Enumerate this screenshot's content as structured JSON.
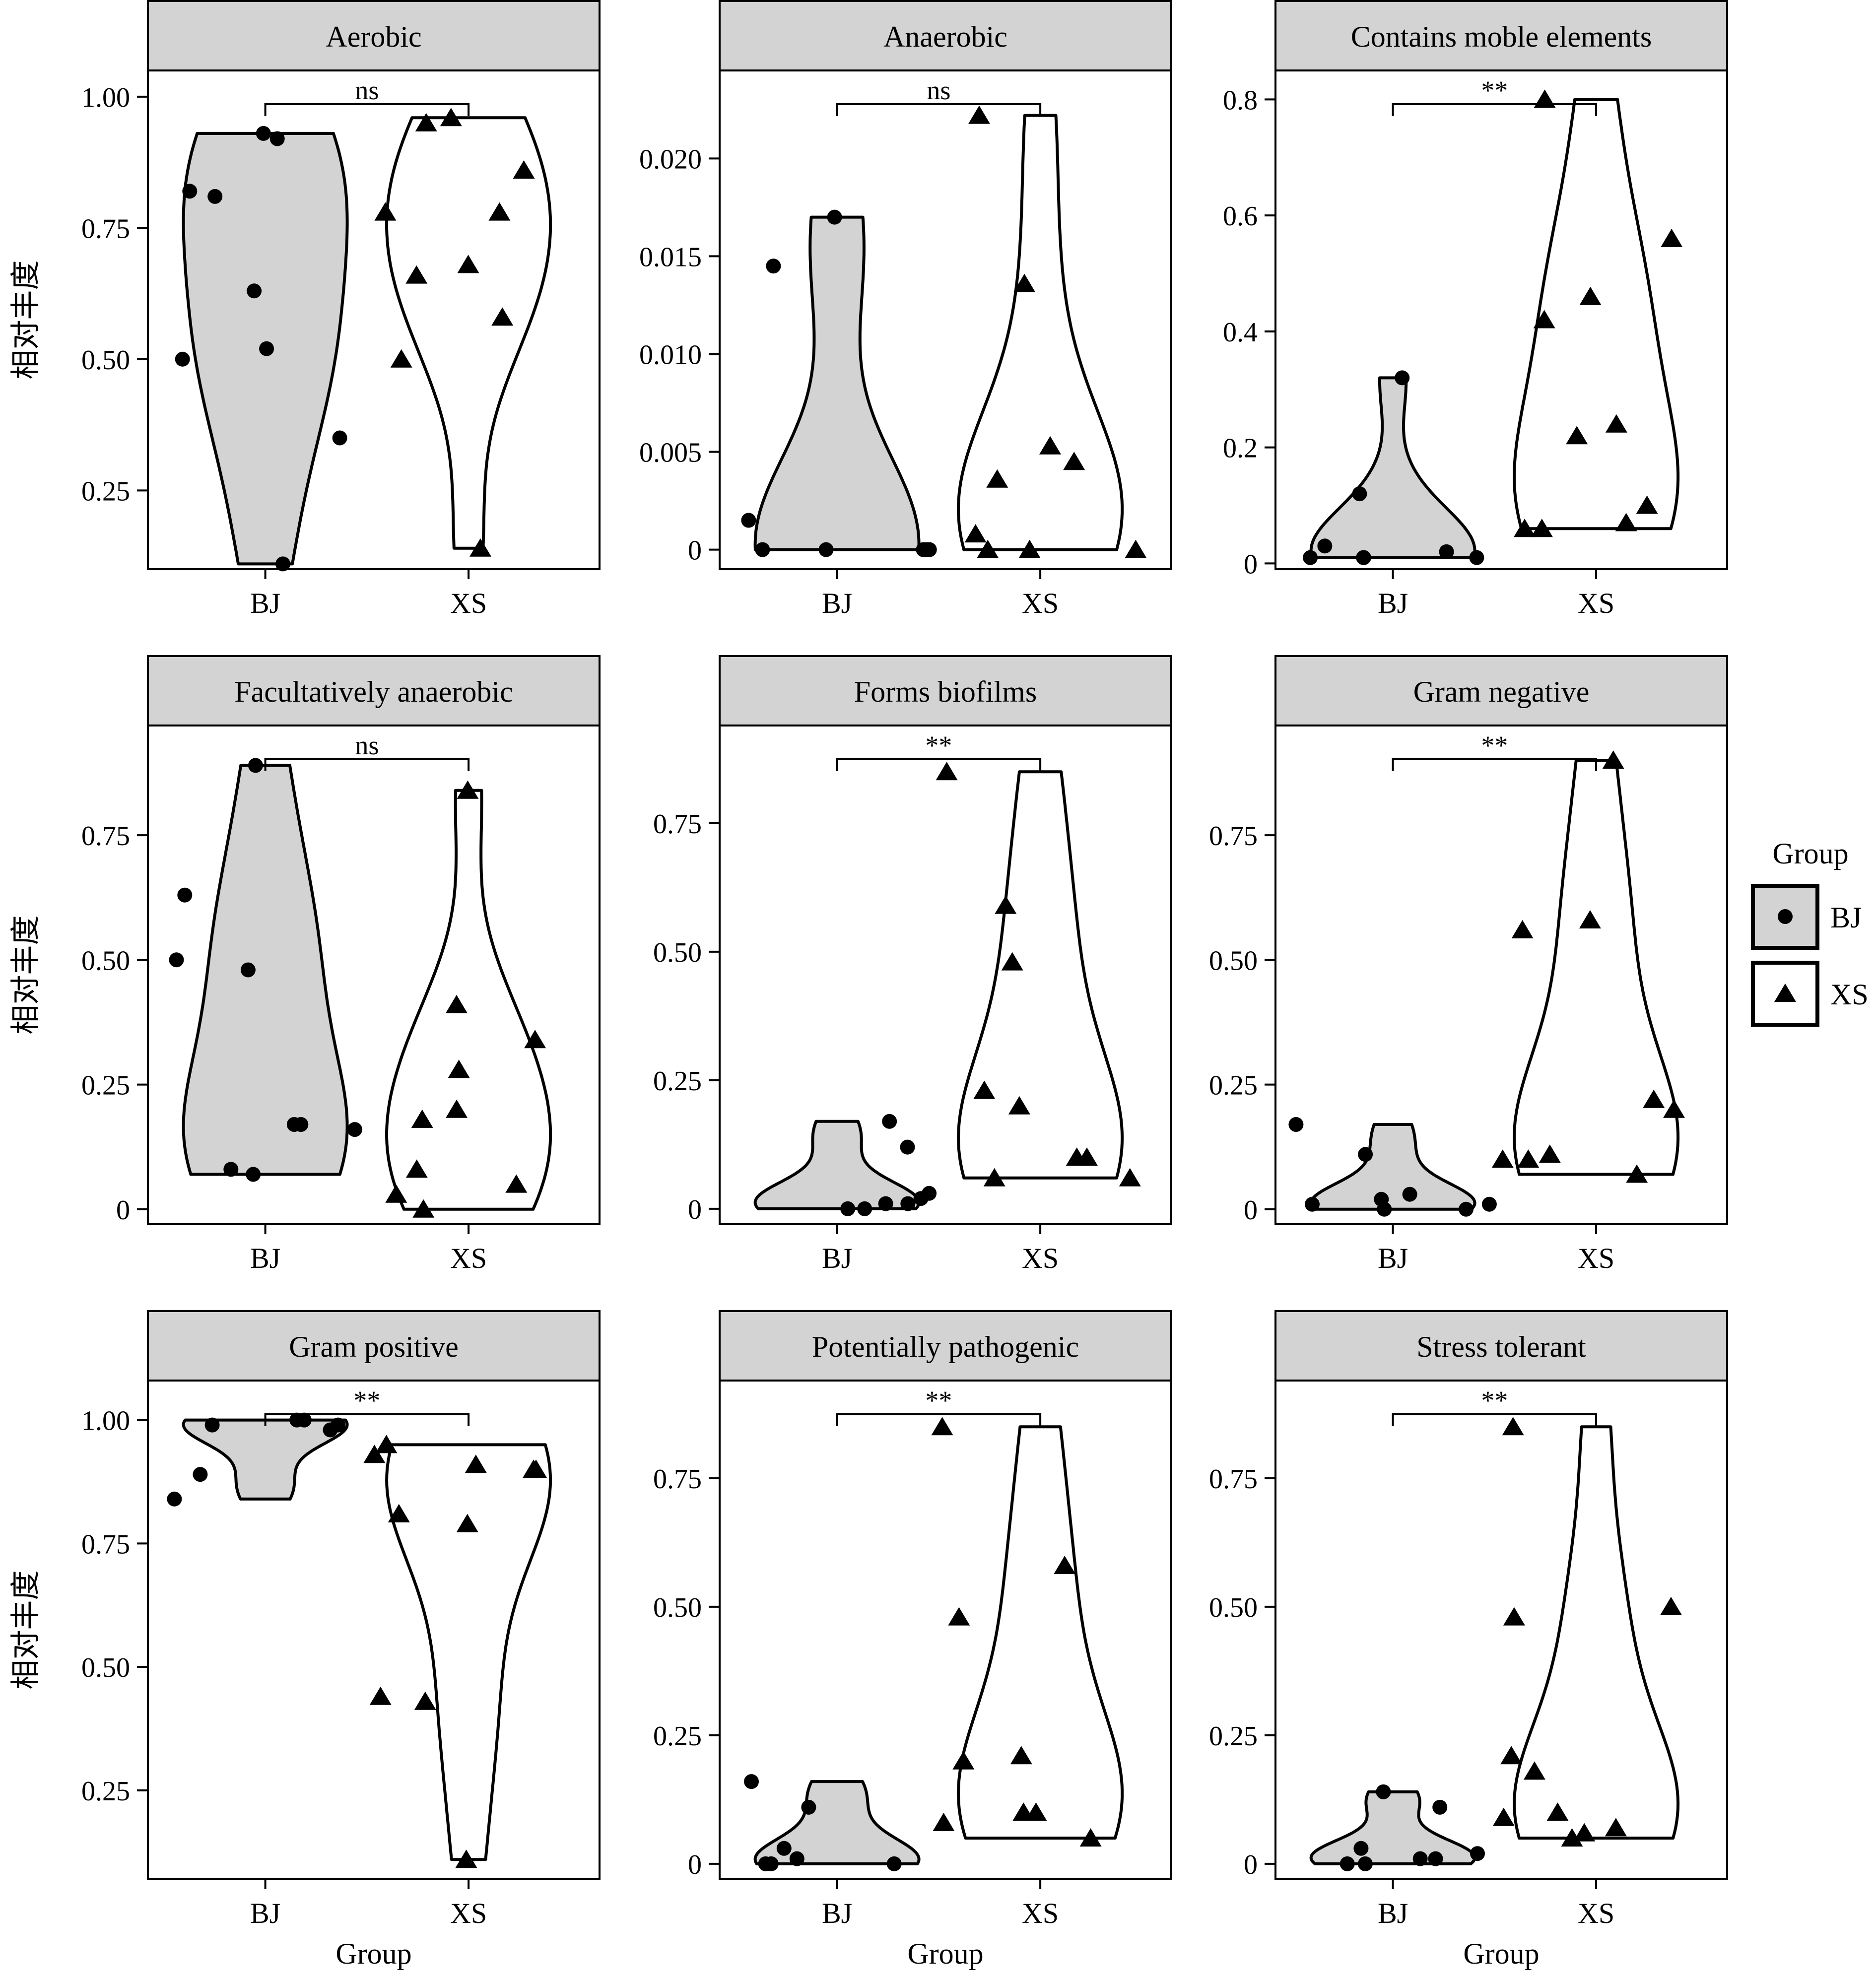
{
  "figure": {
    "y_label": "相对丰度",
    "x_label": "Group",
    "legend": {
      "title": "Group",
      "placement": "right",
      "items": [
        {
          "label": "BJ",
          "shape": "circle",
          "fill": "#d3d3d3"
        },
        {
          "label": "XS",
          "shape": "triangle",
          "fill": "#ffffff"
        }
      ]
    },
    "colors": {
      "bj_violin": "#d3d3d3",
      "xs_violin": "#ffffff",
      "strip": "#d3d3d3",
      "ink": "#000000"
    }
  },
  "chart_data": [
    {
      "type": "violin",
      "title": "Aerobic",
      "categories": [
        "BJ",
        "XS"
      ],
      "ylim": [
        0.1,
        1.05
      ],
      "yticks": [
        0.25,
        0.5,
        0.75,
        1.0
      ],
      "ytick_labels": [
        "0.25",
        "0.50",
        "0.75",
        "1.00"
      ],
      "significance": "ns",
      "series": [
        {
          "group": "BJ",
          "values": [
            0.93,
            0.92,
            0.82,
            0.81,
            0.63,
            0.52,
            0.5,
            0.35,
            0.11
          ]
        },
        {
          "group": "XS",
          "values": [
            0.96,
            0.95,
            0.86,
            0.78,
            0.78,
            0.68,
            0.66,
            0.58,
            0.5,
            0.14
          ]
        }
      ]
    },
    {
      "type": "violin",
      "title": "Anaerobic",
      "categories": [
        "BJ",
        "XS"
      ],
      "ylim": [
        -0.001,
        0.0245
      ],
      "yticks": [
        0,
        0.005,
        0.01,
        0.015,
        0.02
      ],
      "ytick_labels": [
        "0",
        "0.005",
        "0.010",
        "0.015",
        "0.020"
      ],
      "significance": "ns",
      "series": [
        {
          "group": "BJ",
          "values": [
            0.017,
            0.0145,
            0.0015,
            0.0,
            0.0,
            0.0,
            0.0,
            0.0
          ]
        },
        {
          "group": "XS",
          "values": [
            0.0222,
            0.0136,
            0.0053,
            0.0045,
            0.0036,
            0.0008,
            0.0,
            0.0,
            0.0
          ]
        }
      ]
    },
    {
      "type": "violin",
      "title": "Contains moble elements",
      "categories": [
        "BJ",
        "XS"
      ],
      "ylim": [
        -0.01,
        0.85
      ],
      "yticks": [
        0,
        0.2,
        0.4,
        0.6,
        0.8
      ],
      "ytick_labels": [
        "0",
        "0.2",
        "0.4",
        "0.6",
        "0.8"
      ],
      "significance": "**",
      "series": [
        {
          "group": "BJ",
          "values": [
            0.32,
            0.12,
            0.03,
            0.02,
            0.01,
            0.01,
            0.01,
            0.01
          ]
        },
        {
          "group": "XS",
          "values": [
            0.8,
            0.56,
            0.46,
            0.42,
            0.24,
            0.22,
            0.1,
            0.07,
            0.06,
            0.06
          ]
        }
      ]
    },
    {
      "type": "violin",
      "title": "Facultatively anaerobic",
      "categories": [
        "BJ",
        "XS"
      ],
      "ylim": [
        -0.03,
        0.97
      ],
      "yticks": [
        0,
        0.25,
        0.5,
        0.75
      ],
      "ytick_labels": [
        "0",
        "0.25",
        "0.50",
        "0.75"
      ],
      "significance": "ns",
      "series": [
        {
          "group": "BJ",
          "values": [
            0.89,
            0.63,
            0.5,
            0.48,
            0.17,
            0.17,
            0.16,
            0.08,
            0.07
          ]
        },
        {
          "group": "XS",
          "values": [
            0.84,
            0.41,
            0.34,
            0.28,
            0.2,
            0.18,
            0.08,
            0.05,
            0.03,
            0.0
          ]
        }
      ]
    },
    {
      "type": "violin",
      "title": "Forms biofilms",
      "categories": [
        "BJ",
        "XS"
      ],
      "ylim": [
        -0.03,
        0.94
      ],
      "yticks": [
        0,
        0.25,
        0.5,
        0.75
      ],
      "ytick_labels": [
        "0",
        "0.25",
        "0.50",
        "0.75"
      ],
      "significance": "**",
      "series": [
        {
          "group": "BJ",
          "values": [
            0.17,
            0.12,
            0.03,
            0.02,
            0.01,
            0.01,
            0.0,
            0.0
          ]
        },
        {
          "group": "XS",
          "values": [
            0.85,
            0.59,
            0.48,
            0.23,
            0.2,
            0.1,
            0.1,
            0.06,
            0.06
          ]
        }
      ]
    },
    {
      "type": "violin",
      "title": "Gram negative",
      "categories": [
        "BJ",
        "XS"
      ],
      "ylim": [
        -0.03,
        0.97
      ],
      "yticks": [
        0,
        0.25,
        0.5,
        0.75
      ],
      "ytick_labels": [
        "0",
        "0.25",
        "0.50",
        "0.75"
      ],
      "significance": "**",
      "series": [
        {
          "group": "BJ",
          "values": [
            0.17,
            0.11,
            0.03,
            0.02,
            0.01,
            0.01,
            0.0,
            0.0
          ]
        },
        {
          "group": "XS",
          "values": [
            0.9,
            0.58,
            0.56,
            0.22,
            0.2,
            0.11,
            0.1,
            0.1,
            0.07
          ]
        }
      ]
    },
    {
      "type": "violin",
      "title": "Gram positive",
      "categories": [
        "BJ",
        "XS"
      ],
      "ylim": [
        0.07,
        1.08
      ],
      "yticks": [
        0.25,
        0.5,
        0.75,
        1.0
      ],
      "ytick_labels": [
        "0.25",
        "0.50",
        "0.75",
        "1.00"
      ],
      "significance": "**",
      "series": [
        {
          "group": "BJ",
          "values": [
            1.0,
            1.0,
            0.99,
            0.99,
            0.98,
            0.89,
            0.84
          ]
        },
        {
          "group": "XS",
          "values": [
            0.95,
            0.93,
            0.91,
            0.9,
            0.9,
            0.81,
            0.79,
            0.44,
            0.43,
            0.11
          ]
        }
      ]
    },
    {
      "type": "violin",
      "title": "Potentially pathogenic",
      "categories": [
        "BJ",
        "XS"
      ],
      "ylim": [
        -0.03,
        0.94
      ],
      "yticks": [
        0,
        0.25,
        0.5,
        0.75
      ],
      "ytick_labels": [
        "0",
        "0.25",
        "0.50",
        "0.75"
      ],
      "significance": "**",
      "series": [
        {
          "group": "BJ",
          "values": [
            0.16,
            0.11,
            0.03,
            0.01,
            0.0,
            0.0,
            0.0
          ]
        },
        {
          "group": "XS",
          "values": [
            0.85,
            0.58,
            0.48,
            0.21,
            0.2,
            0.1,
            0.1,
            0.08,
            0.05
          ]
        }
      ]
    },
    {
      "type": "violin",
      "title": "Stress tolerant",
      "categories": [
        "BJ",
        "XS"
      ],
      "ylim": [
        -0.03,
        0.94
      ],
      "yticks": [
        0,
        0.25,
        0.5,
        0.75
      ],
      "ytick_labels": [
        "0",
        "0.25",
        "0.50",
        "0.75"
      ],
      "significance": "**",
      "series": [
        {
          "group": "BJ",
          "values": [
            0.14,
            0.11,
            0.03,
            0.02,
            0.01,
            0.01,
            0.0,
            0.0
          ]
        },
        {
          "group": "XS",
          "values": [
            0.85,
            0.5,
            0.48,
            0.21,
            0.18,
            0.1,
            0.09,
            0.07,
            0.06,
            0.05
          ]
        }
      ]
    }
  ]
}
